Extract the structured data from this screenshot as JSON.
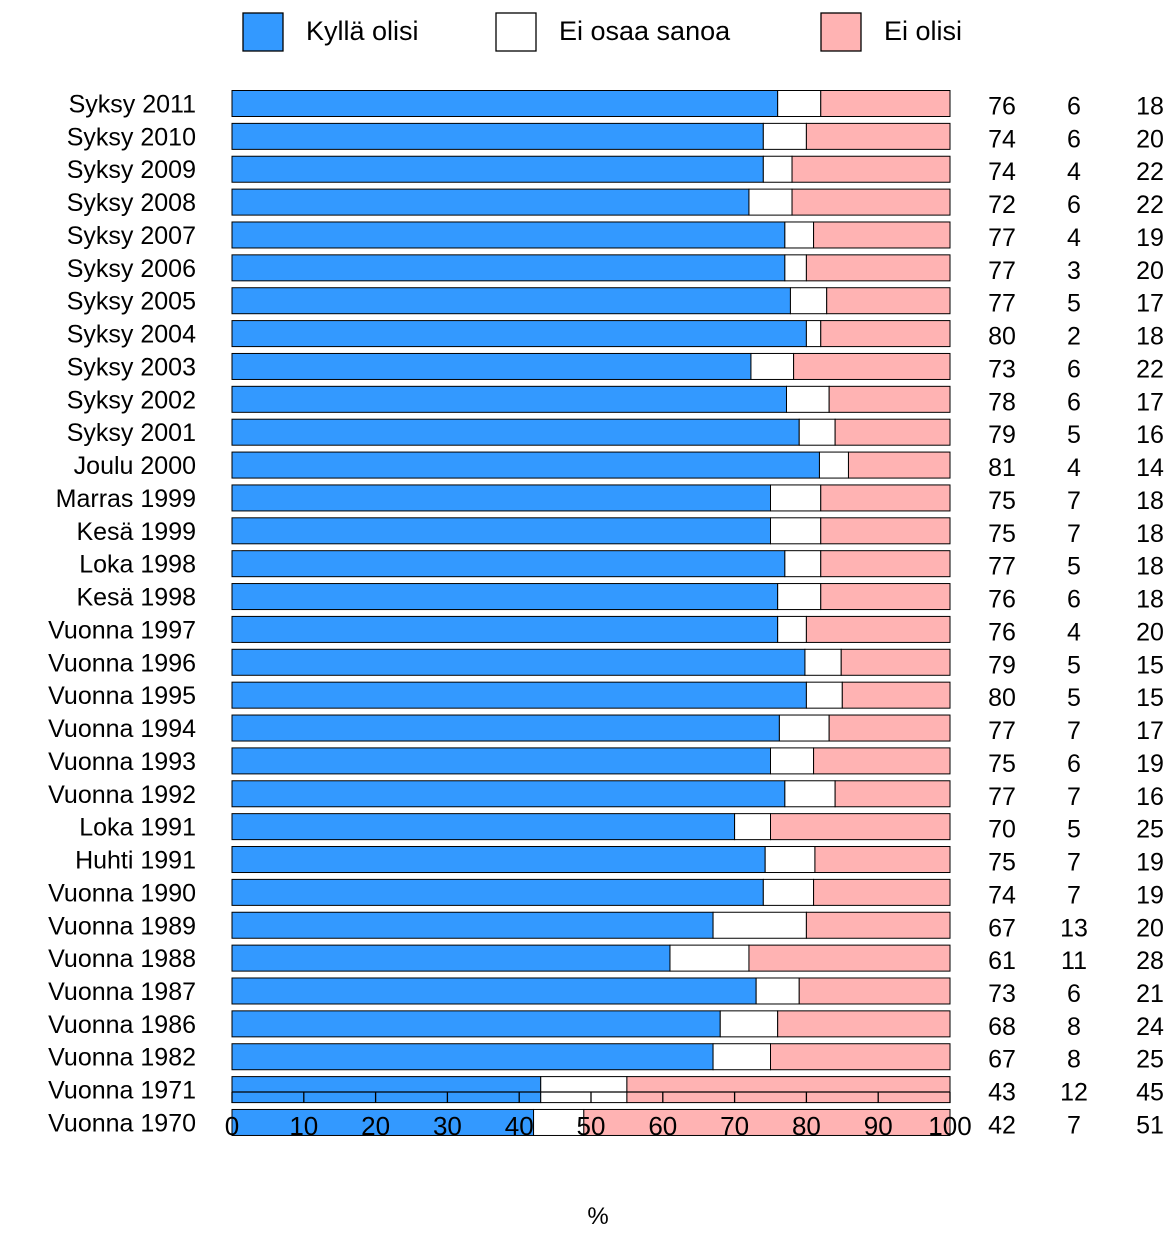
{
  "chart_data": {
    "type": "bar",
    "orientation": "horizontal",
    "stacked": true,
    "categories": [
      "Syksy 2011",
      "Syksy 2010",
      "Syksy 2009",
      "Syksy 2008",
      "Syksy 2007",
      "Syksy 2006",
      "Syksy 2005",
      "Syksy 2004",
      "Syksy 2003",
      "Syksy 2002",
      "Syksy 2001",
      "Joulu 2000",
      "Marras 1999",
      "Kesä 1999",
      "Loka 1998",
      "Kesä 1998",
      "Vuonna 1997",
      "Vuonna 1996",
      "Vuonna 1995",
      "Vuonna 1994",
      "Vuonna 1993",
      "Vuonna 1992",
      "Loka 1991",
      "Huhti 1991",
      "Vuonna 1990",
      "Vuonna 1989",
      "Vuonna 1988",
      "Vuonna 1987",
      "Vuonna 1986",
      "Vuonna 1982",
      "Vuonna 1971",
      "Vuonna 1970"
    ],
    "series": [
      {
        "name": "Kyllä olisi",
        "color": "#3399ff",
        "values": [
          76,
          74,
          74,
          72,
          77,
          77,
          77,
          80,
          73,
          78,
          79,
          81,
          75,
          75,
          77,
          76,
          76,
          79,
          80,
          77,
          75,
          77,
          70,
          75,
          74,
          67,
          61,
          73,
          68,
          67,
          43,
          42
        ]
      },
      {
        "name": "Ei osaa sanoa",
        "color": "#ffffff",
        "values": [
          6,
          6,
          4,
          6,
          4,
          3,
          5,
          2,
          6,
          6,
          5,
          4,
          7,
          7,
          5,
          6,
          4,
          5,
          5,
          7,
          6,
          7,
          5,
          7,
          7,
          13,
          11,
          6,
          8,
          8,
          12,
          7
        ]
      },
      {
        "name": "Ei olisi",
        "color": "#ffb3b3",
        "values": [
          18,
          20,
          22,
          22,
          19,
          20,
          17,
          18,
          22,
          17,
          16,
          14,
          18,
          18,
          18,
          18,
          20,
          15,
          15,
          17,
          19,
          16,
          25,
          19,
          19,
          20,
          28,
          21,
          24,
          25,
          45,
          51
        ]
      }
    ],
    "xlabel": "%",
    "xlim": [
      0,
      100
    ],
    "xticks": [
      0,
      10,
      20,
      30,
      40,
      50,
      60,
      70,
      80,
      90,
      100
    ],
    "legend_position": "top",
    "value_columns": "right"
  }
}
